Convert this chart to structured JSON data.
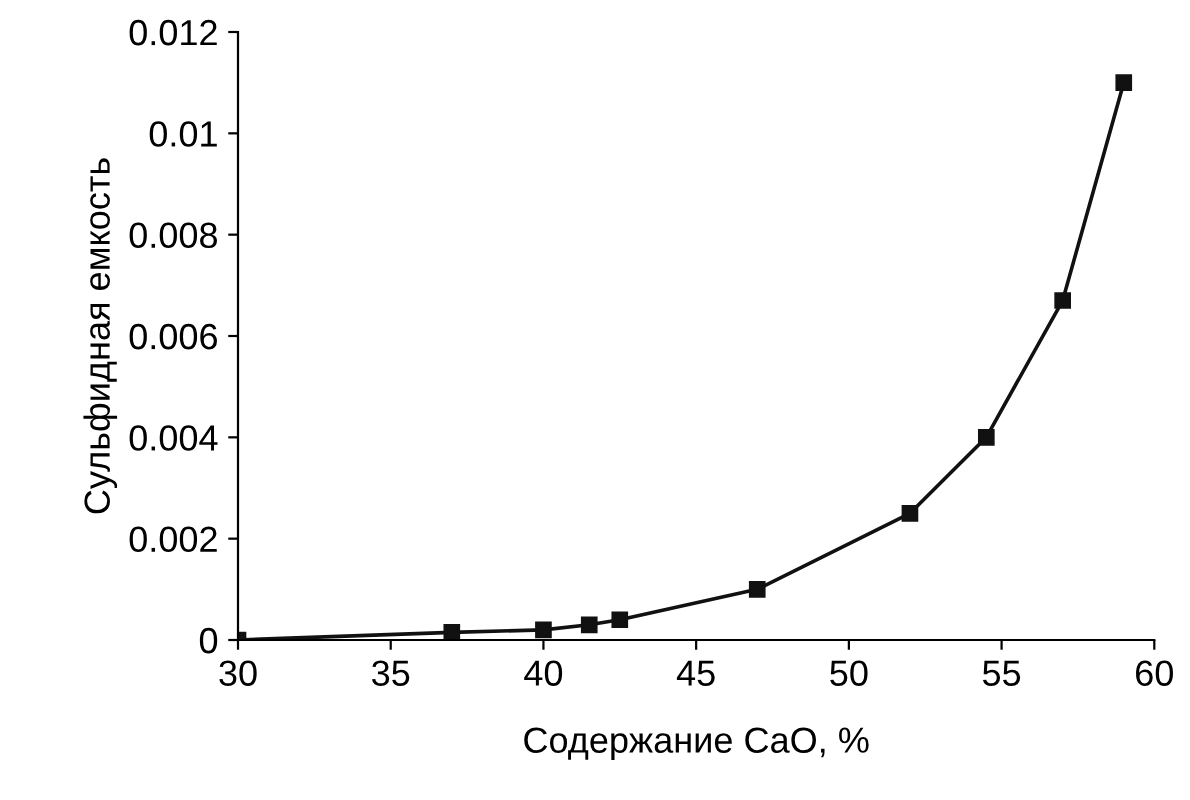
{
  "chart_data": {
    "type": "line",
    "xlabel": "Содержание CaO, %",
    "ylabel": "Сульфидная емкость",
    "x": [
      30,
      37,
      40,
      41.5,
      42.5,
      47,
      52,
      54.5,
      57,
      59
    ],
    "series": [
      {
        "color": "#111111",
        "values": [
          0,
          0.00015,
          0.0002,
          0.0003,
          0.0004,
          0.001,
          0.0025,
          0.004,
          0.0067,
          0.011
        ]
      }
    ],
    "xlim": [
      30,
      60
    ],
    "xticks": [
      30,
      35,
      40,
      45,
      50,
      55,
      60
    ],
    "ylim": [
      0,
      0.012
    ],
    "yticks": [
      0,
      0.002,
      0.004,
      0.006,
      0.008,
      0.01,
      0.012
    ],
    "marker": "square",
    "line_style": "solid",
    "grid": false,
    "legend": false
  }
}
